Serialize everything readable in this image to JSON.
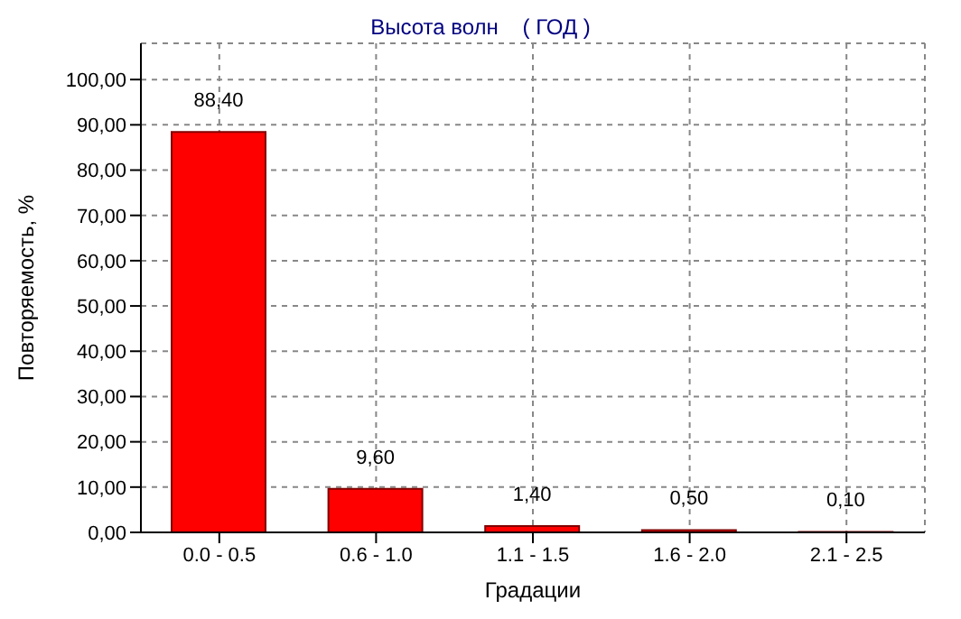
{
  "chart_data": {
    "type": "bar",
    "title": "Высота волн    ( ГОД )",
    "xlabel": "Градации",
    "ylabel": "Повторяемость, %",
    "categories": [
      "0.0 - 0.5",
      "0.6 - 1.0",
      "1.1 - 1.5",
      "1.6 - 2.0",
      "2.1 - 2.5"
    ],
    "values": [
      88.4,
      9.6,
      1.4,
      0.5,
      0.1
    ],
    "value_labels": [
      "88,40",
      "9,60",
      "1,40",
      "0,50",
      "0,10"
    ],
    "color": "#ff0000",
    "ylim": [
      0,
      108
    ],
    "yticks": [
      {
        "value": 0,
        "label": "0,00"
      },
      {
        "value": 10,
        "label": "10,00"
      },
      {
        "value": 20,
        "label": "20,00"
      },
      {
        "value": 30,
        "label": "30,00"
      },
      {
        "value": 40,
        "label": "40,00"
      },
      {
        "value": 50,
        "label": "50,00"
      },
      {
        "value": 60,
        "label": "60,00"
      },
      {
        "value": 70,
        "label": "70,00"
      },
      {
        "value": 80,
        "label": "80,00"
      },
      {
        "value": 90,
        "label": "90,00"
      },
      {
        "value": 100,
        "label": "100,00"
      }
    ],
    "grid": true
  }
}
